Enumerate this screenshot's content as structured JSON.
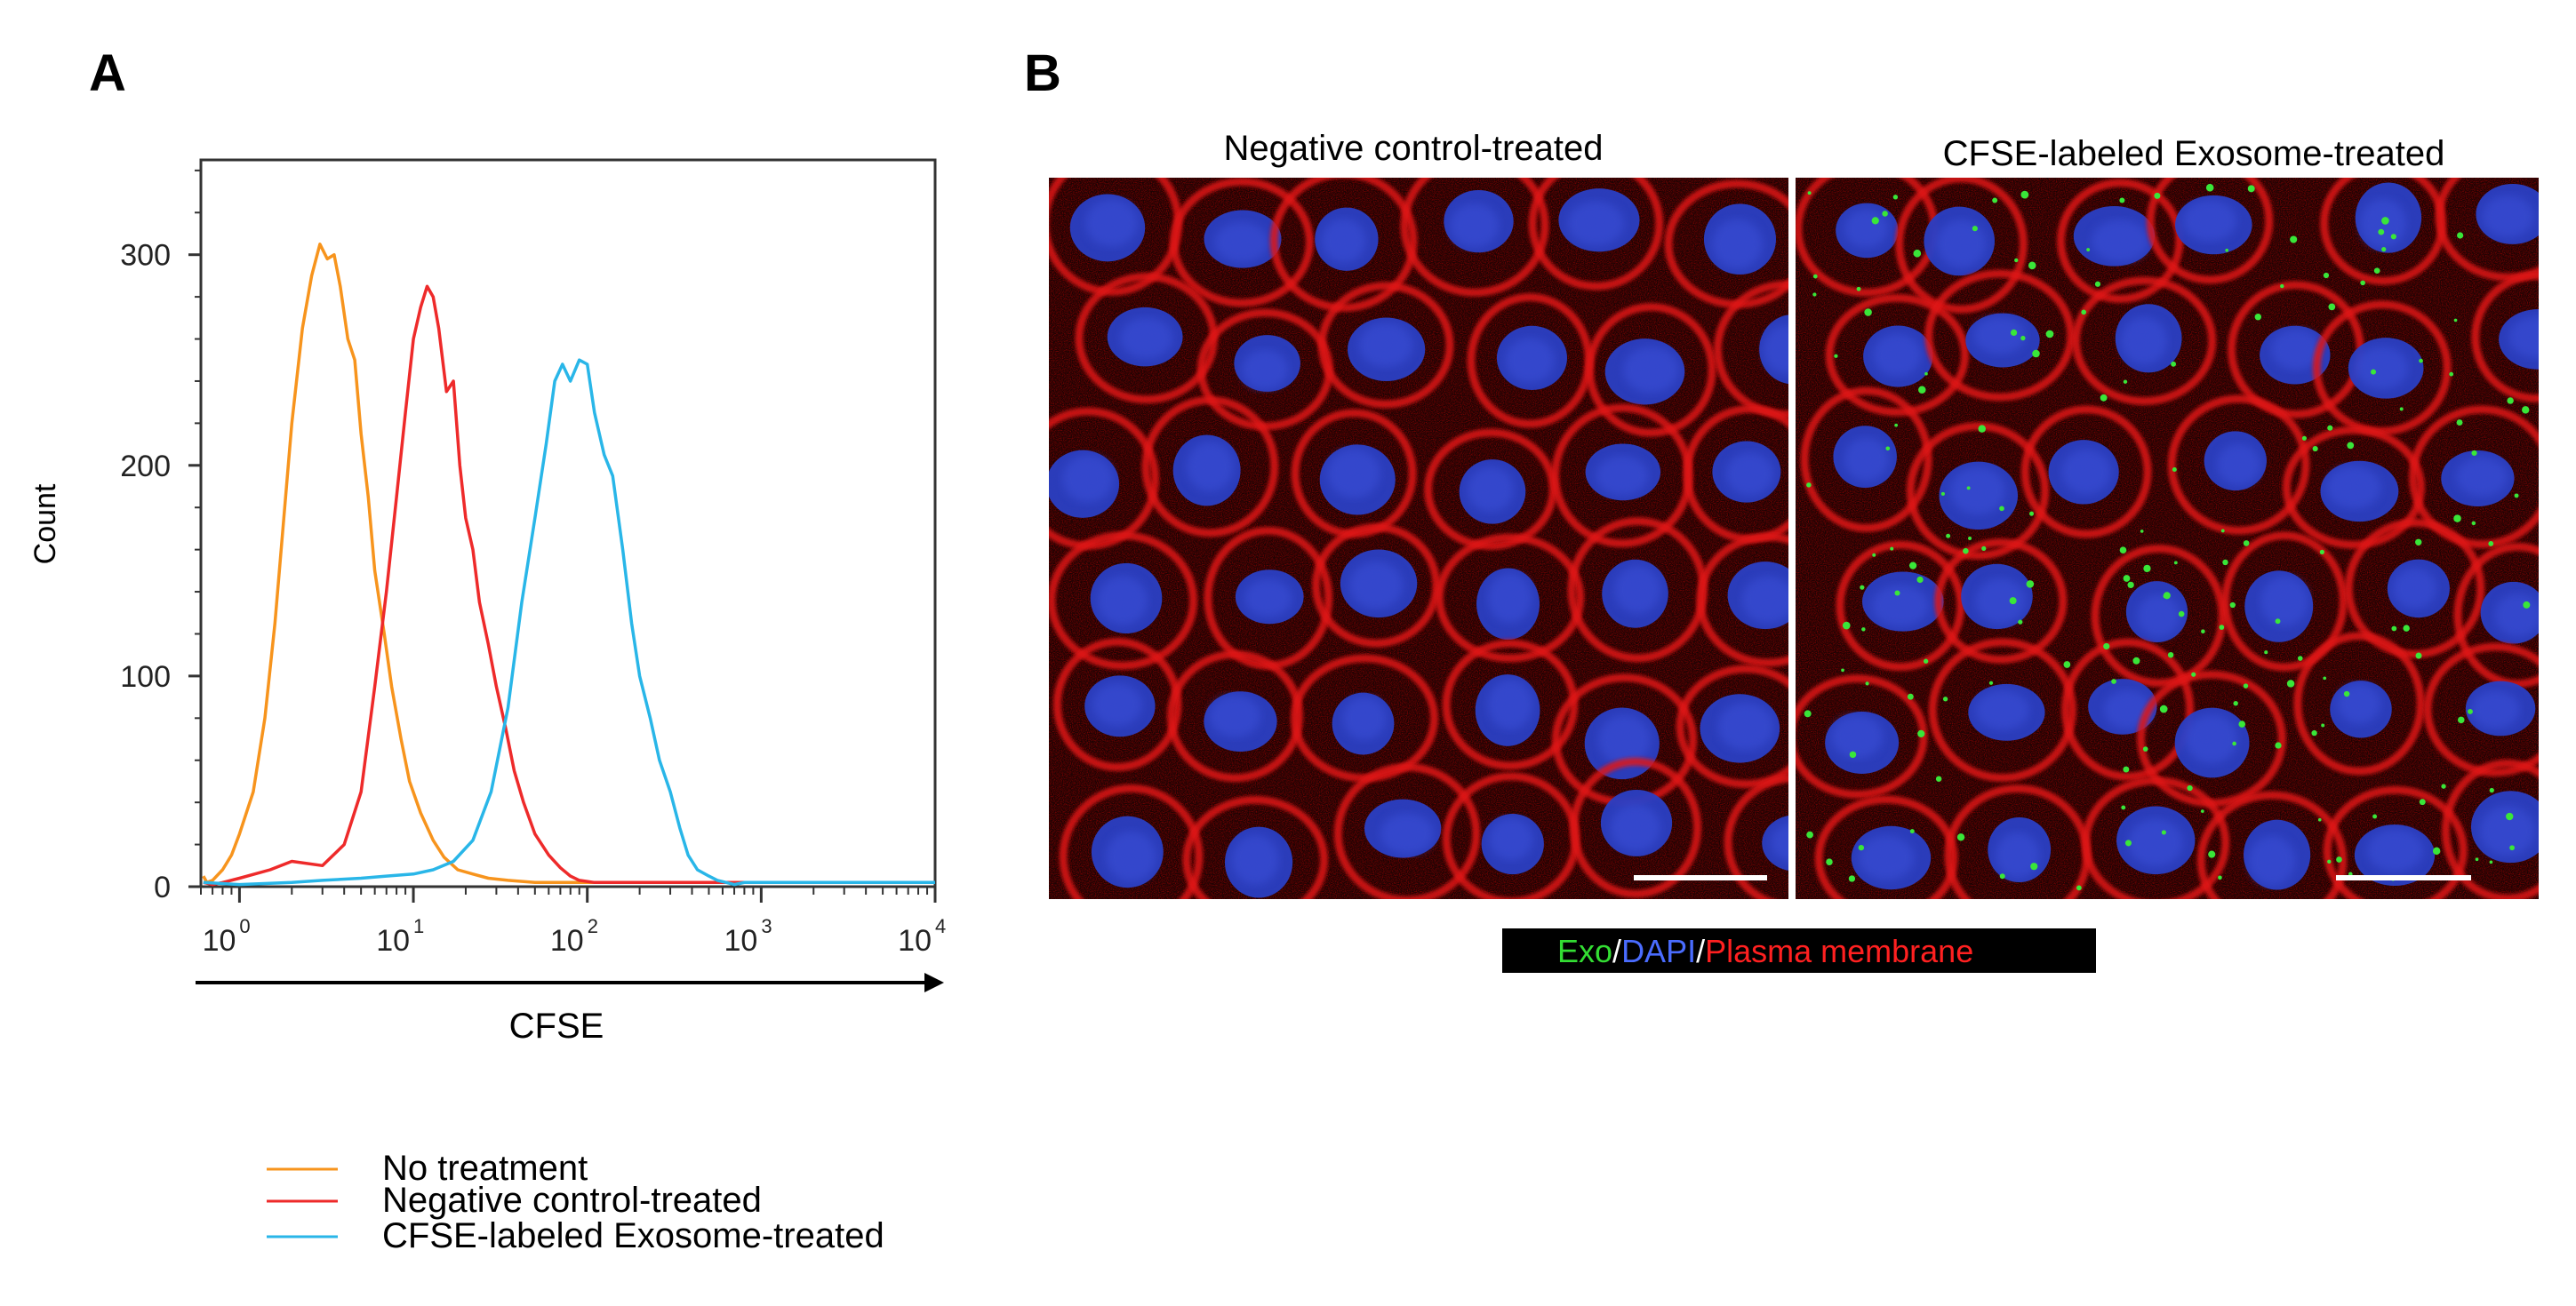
{
  "panel_a_label": "A",
  "panel_b_label": "B",
  "chart_data": {
    "type": "line",
    "xlabel": "CFSE",
    "ylabel": "Count",
    "x_scale": "log",
    "xlim": [
      0.6,
      10000
    ],
    "ylim": [
      0,
      345
    ],
    "grid": false,
    "legend_position": "below",
    "x_ticks": [
      {
        "value": 1,
        "base": "10",
        "exp": "0"
      },
      {
        "value": 10,
        "base": "10",
        "exp": "1"
      },
      {
        "value": 100,
        "base": "10",
        "exp": "2"
      },
      {
        "value": 1000,
        "base": "10",
        "exp": "3"
      },
      {
        "value": 10000,
        "base": "10",
        "exp": "4"
      }
    ],
    "y_ticks": [
      {
        "value": 0,
        "label": "0"
      },
      {
        "value": 100,
        "label": "100"
      },
      {
        "value": 200,
        "label": "200"
      },
      {
        "value": 300,
        "label": "300"
      }
    ],
    "series": [
      {
        "name": "No treatment",
        "color": "#f7941d",
        "x": [
          0.62,
          0.65,
          0.7,
          0.8,
          0.9,
          1.0,
          1.2,
          1.4,
          1.6,
          1.8,
          2.0,
          2.3,
          2.6,
          2.9,
          3.2,
          3.5,
          3.8,
          4.2,
          4.6,
          5.0,
          5.5,
          6.0,
          6.8,
          7.5,
          8.5,
          9.5,
          11,
          13,
          15,
          18,
          22,
          27,
          35,
          50,
          80,
          150,
          400,
          1000,
          3000,
          10000
        ],
        "y": [
          5,
          2,
          3,
          8,
          15,
          25,
          45,
          80,
          125,
          175,
          220,
          265,
          290,
          305,
          298,
          300,
          285,
          260,
          250,
          215,
          185,
          150,
          120,
          95,
          70,
          50,
          35,
          22,
          14,
          8,
          6,
          4,
          3,
          2,
          2,
          2,
          2,
          2,
          2,
          2
        ]
      },
      {
        "name": "Negative control-treated",
        "color": "#ee2a2a",
        "x": [
          0.62,
          0.7,
          0.8,
          1.0,
          1.5,
          2.0,
          3.0,
          4.0,
          5.0,
          6.0,
          7.0,
          8.0,
          9.0,
          10.0,
          11.0,
          12.0,
          13.0,
          14.0,
          15.5,
          17.0,
          18.5,
          20,
          22,
          24,
          27,
          30,
          34,
          38,
          43,
          50,
          60,
          70,
          80,
          90,
          110,
          1000,
          10000
        ],
        "y": [
          2,
          1,
          2,
          4,
          8,
          12,
          10,
          20,
          45,
          95,
          140,
          185,
          225,
          260,
          275,
          285,
          280,
          265,
          235,
          240,
          200,
          175,
          160,
          135,
          115,
          95,
          75,
          55,
          40,
          25,
          15,
          9,
          5,
          3,
          2,
          2,
          2
        ]
      },
      {
        "name": "CFSE-labeled Exosome-treated",
        "color": "#29b6e8",
        "x": [
          0.62,
          1.0,
          2.0,
          3.0,
          5.0,
          7.0,
          10,
          13,
          17,
          22,
          28,
          35,
          42,
          50,
          58,
          65,
          72,
          80,
          90,
          100,
          110,
          125,
          140,
          160,
          180,
          200,
          230,
          260,
          300,
          340,
          380,
          430,
          500,
          560,
          630,
          700,
          800,
          1000,
          3000,
          10000
        ],
        "y": [
          2,
          1,
          2,
          3,
          4,
          5,
          6,
          8,
          12,
          22,
          45,
          85,
          135,
          175,
          210,
          240,
          248,
          240,
          250,
          248,
          225,
          205,
          195,
          160,
          125,
          100,
          80,
          60,
          45,
          28,
          15,
          8,
          5,
          3,
          2,
          1,
          2,
          2,
          2,
          2
        ]
      }
    ]
  },
  "legend": [
    {
      "label": "No treatment",
      "color": "#f7941d"
    },
    {
      "label": "Negative control-treated",
      "color": "#ee2a2a"
    },
    {
      "label": "CFSE-labeled Exosome-treated",
      "color": "#29b6e8"
    }
  ],
  "images": {
    "left_title": "Negative control-treated",
    "right_title": "CFSE-labeled Exosome-treated"
  },
  "stain_legend": {
    "exo": "Exo",
    "sep1": "/",
    "dapi": "DAPI",
    "sep2": "/",
    "membrane": "Plasma membrane",
    "exo_color": "#33dd33",
    "dapi_color": "#4a6cff",
    "membrane_color": "#ff2020"
  }
}
